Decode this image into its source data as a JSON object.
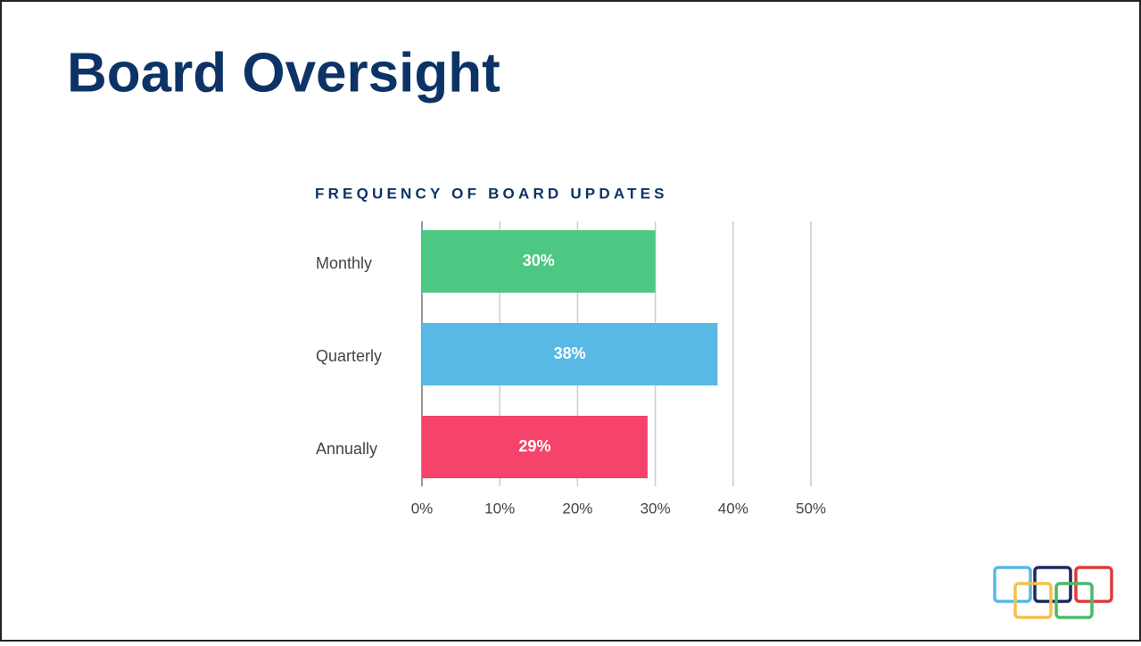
{
  "heading": "Board Oversight",
  "chart_data": {
    "type": "hbar",
    "title": "FREQUENCY OF BOARD UPDATES",
    "categories": [
      "Monthly",
      "Quarterly",
      "Annually"
    ],
    "values": [
      30,
      38,
      29
    ],
    "value_labels": [
      "30%",
      "38%",
      "29%"
    ],
    "colors": [
      "#4cc882",
      "#58b9e5",
      "#f5436a"
    ],
    "xlim": [
      0,
      50
    ],
    "xticks": [
      {
        "value": 0,
        "label": "0%"
      },
      {
        "value": 10,
        "label": "10%"
      },
      {
        "value": 20,
        "label": "20%"
      },
      {
        "value": 30,
        "label": "30%"
      },
      {
        "value": 40,
        "label": "40%"
      },
      {
        "value": 50,
        "label": "50%"
      }
    ],
    "grid": true
  }
}
